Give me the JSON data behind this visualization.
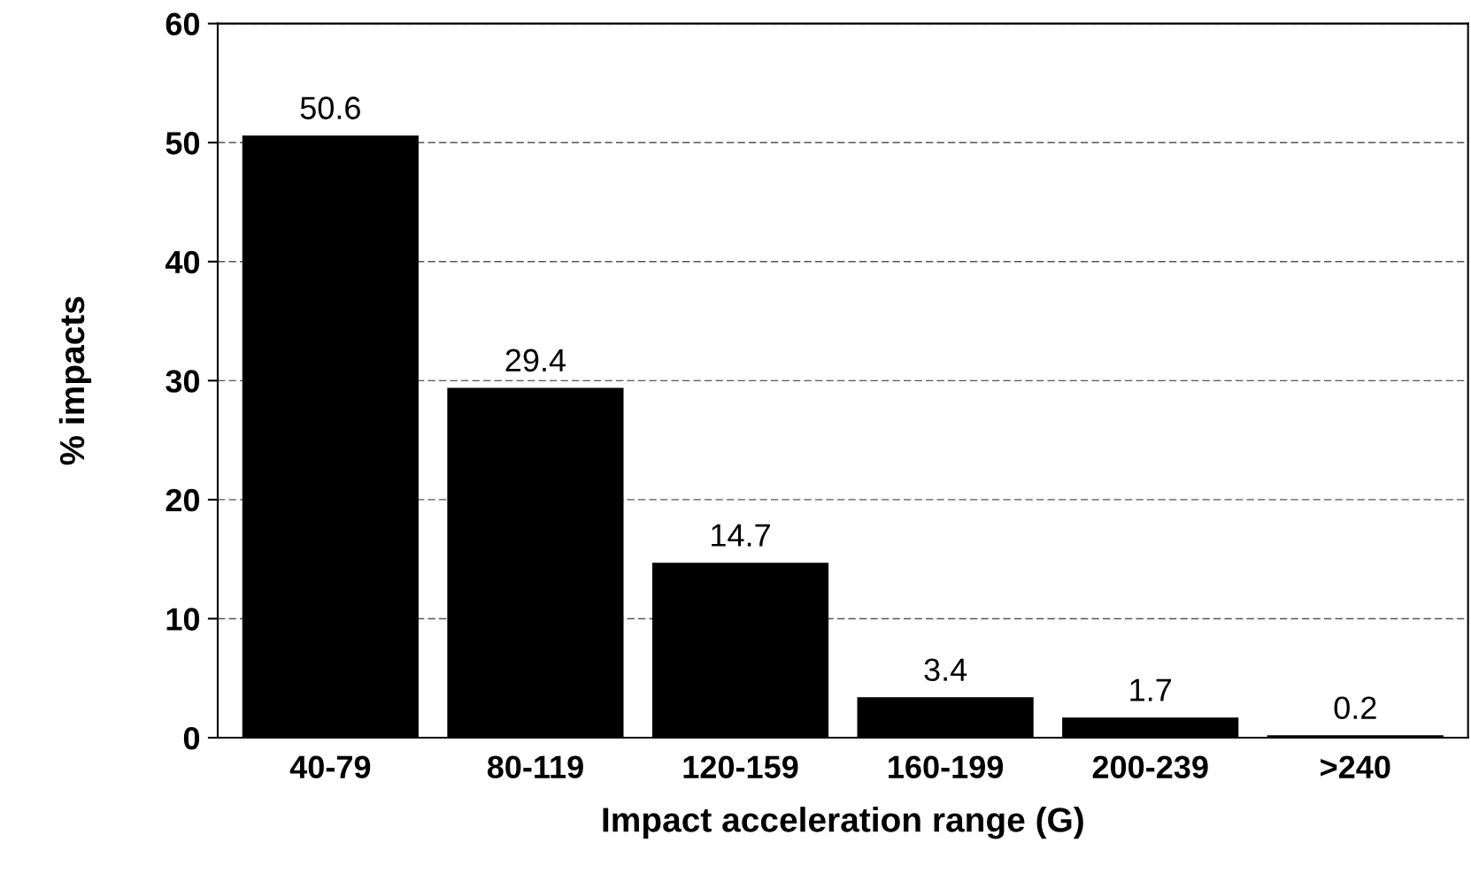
{
  "chart_data": {
    "type": "bar",
    "xlabel": "Impact acceleration range (G)",
    "ylabel": "% impacts",
    "categories": [
      "40-79",
      "80-119",
      "120-159",
      "160-199",
      "200-239",
      ">240"
    ],
    "values": [
      50.6,
      29.4,
      14.7,
      3.4,
      1.7,
      0.2
    ],
    "color": "#000000",
    "ylim": [
      0,
      60
    ],
    "yticks": [
      0,
      10,
      20,
      30,
      40,
      50,
      60
    ],
    "grid": "y",
    "data_labels": true
  }
}
